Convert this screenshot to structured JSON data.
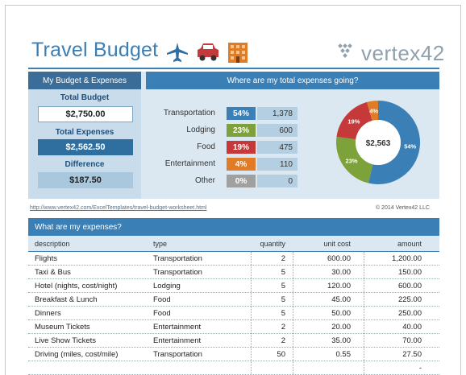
{
  "header": {
    "title": "Travel Budget",
    "brand": "vertex42",
    "icons": [
      "airplane-icon",
      "car-icon",
      "hotel-icon"
    ]
  },
  "colors": {
    "primary": "#3a7fb5",
    "dark": "#3a6d98",
    "transportation": "#3a7fb5",
    "lodging": "#7ea23a",
    "food": "#c5393b",
    "entertainment": "#df7c25",
    "other": "#a0a0a0"
  },
  "summary": {
    "left_title": "My Budget & Expenses",
    "total_budget_label": "Total Budget",
    "total_budget": "$2,750.00",
    "total_expenses_label": "Total Expenses",
    "total_expenses": "$2,562.50",
    "difference_label": "Difference",
    "difference": "$187.50",
    "right_title": "Where are my total expenses going?",
    "categories": [
      {
        "name": "Transportation",
        "pct": "54%",
        "amount": "1,378"
      },
      {
        "name": "Lodging",
        "pct": "23%",
        "amount": "600"
      },
      {
        "name": "Food",
        "pct": "19%",
        "amount": "475"
      },
      {
        "name": "Entertainment",
        "pct": "4%",
        "amount": "110"
      },
      {
        "name": "Other",
        "pct": "0%",
        "amount": "0"
      }
    ],
    "donut_center": "$2,563"
  },
  "chart_data": {
    "type": "pie",
    "categories": [
      "Transportation",
      "Lodging",
      "Food",
      "Entertainment",
      "Other"
    ],
    "values": [
      1378,
      600,
      475,
      110,
      0
    ],
    "labels": [
      "54%",
      "23%",
      "19%",
      "4%",
      ""
    ],
    "center_label": "$2,563"
  },
  "footer": {
    "url": "http://www.vertex42.com/ExcelTemplates/travel-budget-worksheet.html",
    "copyright": "© 2014 Vertex42 LLC"
  },
  "expenses": {
    "title": "What are my expenses?",
    "columns": [
      "description",
      "type",
      "quantity",
      "unit cost",
      "amount"
    ],
    "rows": [
      [
        "Flights",
        "Transportation",
        "2",
        "600.00",
        "1,200.00"
      ],
      [
        "Taxi & Bus",
        "Transportation",
        "5",
        "30.00",
        "150.00"
      ],
      [
        "Hotel (nights, cost/night)",
        "Lodging",
        "5",
        "120.00",
        "600.00"
      ],
      [
        "Breakfast & Lunch",
        "Food",
        "5",
        "45.00",
        "225.00"
      ],
      [
        "Dinners",
        "Food",
        "5",
        "50.00",
        "250.00"
      ],
      [
        "Museum Tickets",
        "Entertainment",
        "2",
        "20.00",
        "40.00"
      ],
      [
        "Live Show Tickets",
        "Entertainment",
        "2",
        "35.00",
        "70.00"
      ],
      [
        "Driving (miles, cost/mile)",
        "Transportation",
        "50",
        "0.55",
        "27.50"
      ],
      [
        "",
        "",
        "",
        "",
        "-"
      ]
    ]
  }
}
